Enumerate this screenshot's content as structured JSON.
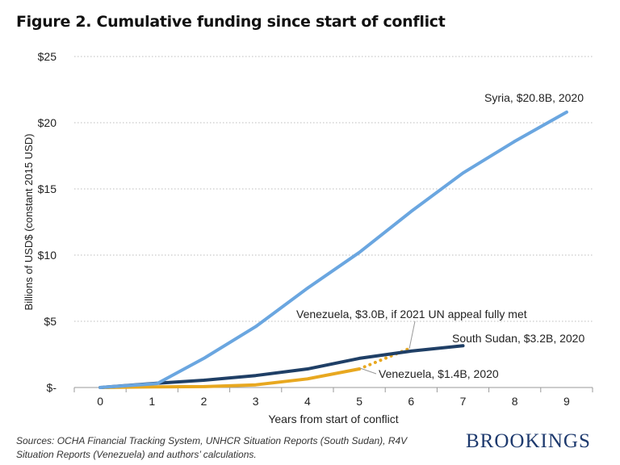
{
  "title": "Figure 2. Cumulative funding since start of conflict",
  "sources": "Sources: OCHA Financial Tracking System, UNHCR Situation Reports (South Sudan), R4V Situation Reports (Venezuela) and authors’ calculations.",
  "brand": "BROOKINGS",
  "chart_data": {
    "type": "line",
    "xlabel": "Years from start of conflict",
    "ylabel": "Billions of USD$ (constant 2015 USD)",
    "xlim": [
      -0.5,
      9.5
    ],
    "ylim": [
      0,
      25
    ],
    "x_ticks": [
      0,
      1,
      2,
      3,
      4,
      5,
      6,
      7,
      8,
      9
    ],
    "x_tick_labels": [
      "0",
      "1",
      "2",
      "3",
      "4",
      "5",
      "6",
      "7",
      "8",
      "9"
    ],
    "y_ticks": [
      0,
      5,
      10,
      15,
      20,
      25
    ],
    "y_tick_labels": [
      "$-",
      "$5",
      "$10",
      "$15",
      "$20",
      "$25"
    ],
    "grid": true,
    "series": [
      {
        "name": "Syria",
        "color": "#6aa6e0",
        "style": "solid",
        "x": [
          0,
          1.1,
          2,
          3,
          4,
          5,
          6,
          7,
          8,
          9
        ],
        "y": [
          0,
          0.3,
          2.2,
          4.6,
          7.5,
          10.2,
          13.3,
          16.2,
          18.6,
          20.8
        ]
      },
      {
        "name": "South Sudan",
        "color": "#1f3f66",
        "style": "solid",
        "x": [
          0,
          1,
          2,
          3,
          4,
          5,
          6,
          7
        ],
        "y": [
          0,
          0.3,
          0.55,
          0.9,
          1.4,
          2.2,
          2.75,
          3.15
        ]
      },
      {
        "name": "Venezuela",
        "color": "#e8a820",
        "style": "solid",
        "x": [
          0,
          1,
          2,
          3,
          4,
          5
        ],
        "y": [
          0,
          0.05,
          0.07,
          0.2,
          0.65,
          1.4
        ]
      },
      {
        "name": "Venezuela",
        "color": "#e8a820",
        "style": "dotted",
        "x": [
          5,
          6
        ],
        "y": [
          1.4,
          3.0
        ]
      }
    ],
    "annotations": [
      {
        "text": "Syria, $20.8B, 2020",
        "x": 9,
        "y": 20.8
      },
      {
        "text": "Venezuela, $3.0B, if 2021 UN appeal fully met",
        "x": 6,
        "y": 3.0
      },
      {
        "text": "South Sudan, $3.2B, 2020",
        "x": 7,
        "y": 3.15
      },
      {
        "text": "Venezuela, $1.4B, 2020",
        "x": 5,
        "y": 1.4
      }
    ]
  }
}
